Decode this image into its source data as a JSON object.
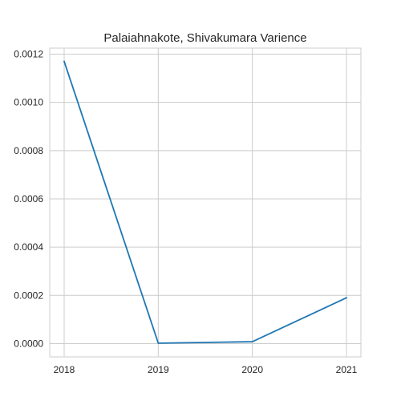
{
  "chart_data": {
    "type": "line",
    "title": "Palaiahnakote, Shivakumara Varience",
    "xlabel": "",
    "ylabel": "",
    "x_ticks": [
      "2018",
      "2019",
      "2020",
      "2021"
    ],
    "y_ticks": [
      "0.0000",
      "0.0002",
      "0.0004",
      "0.0006",
      "0.0008",
      "0.0010",
      "0.0012"
    ],
    "ylim": [
      -5.5e-05,
      0.001225
    ],
    "grid": true,
    "series": [
      {
        "color": "#1f77b4",
        "x": [
          "2018",
          "2019",
          "2020",
          "2021"
        ],
        "values": [
          0.00117,
          2e-06,
          8e-06,
          0.00019
        ]
      }
    ]
  }
}
